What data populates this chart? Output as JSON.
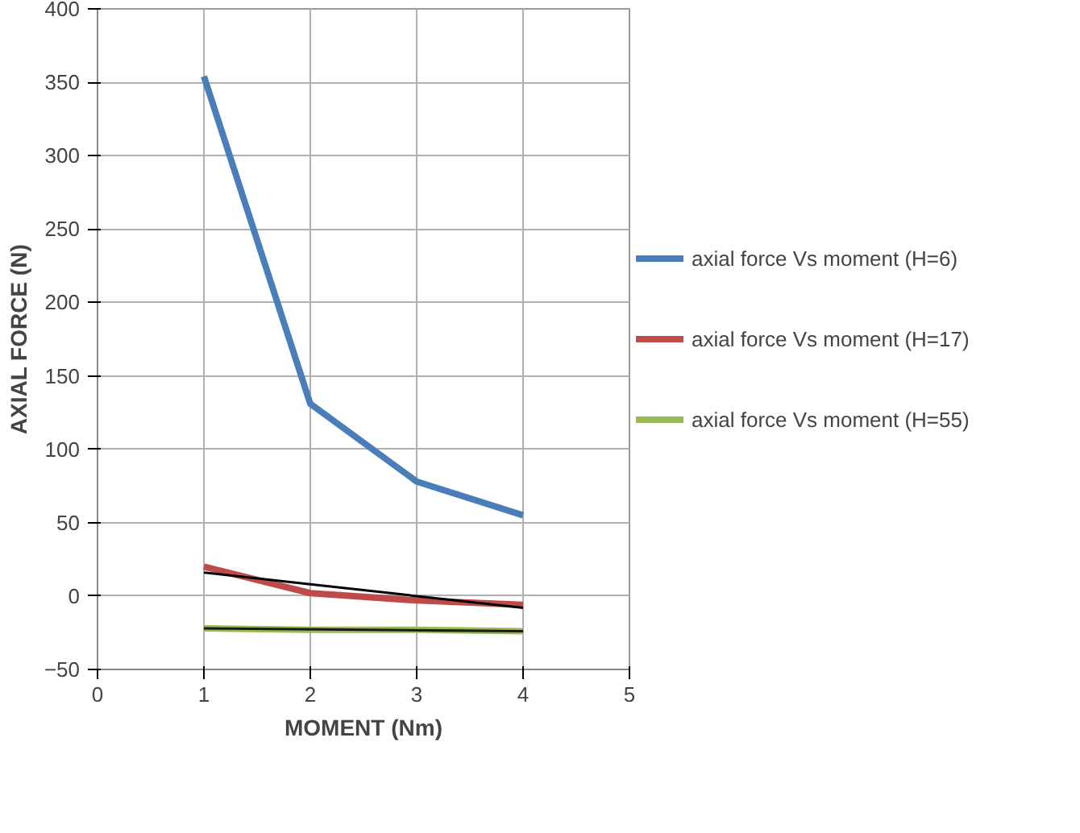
{
  "chart_data": {
    "type": "line",
    "xlabel": "MOMENT (Nm)",
    "ylabel": "AXIAL FORCE (N)",
    "x": [
      1,
      2,
      3,
      4
    ],
    "series": [
      {
        "name": "axial force Vs moment (H=6)",
        "color": "#4a7ebb",
        "values": [
          354,
          131,
          78,
          55
        ]
      },
      {
        "name": "axial force Vs moment (H=17)",
        "color": "#be4b48",
        "values": [
          20,
          2,
          -3,
          -6
        ]
      },
      {
        "name": "axial force Vs moment (H=55)",
        "color": "#98b954",
        "values": [
          -22,
          -23,
          -23,
          -24
        ]
      },
      {
        "color": "#000000",
        "values": [
          16,
          8,
          0,
          -8
        ]
      },
      {
        "color": "#1a1a1a",
        "x": [
          1,
          4
        ],
        "values": [
          -22,
          -24
        ]
      }
    ],
    "xlim": [
      0,
      5
    ],
    "xticks": [
      0,
      1,
      2,
      3,
      4,
      5
    ],
    "ylim": [
      -50,
      400
    ],
    "yticks": [
      -50,
      0,
      50,
      100,
      150,
      200,
      250,
      300,
      350,
      400
    ],
    "grid": true,
    "legend": "right",
    "marker": "none",
    "line_style": "solid"
  }
}
